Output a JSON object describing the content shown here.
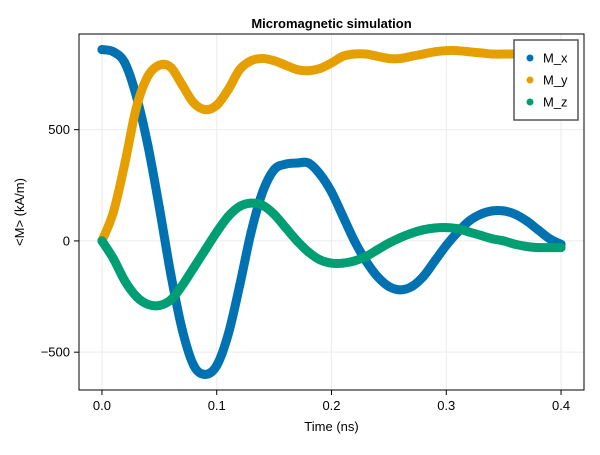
{
  "chart_data": {
    "type": "scatter",
    "title": "Micromagnetic simulation",
    "xlabel": "Time (ns)",
    "ylabel": "<M> (kA/m)",
    "xlim": [
      -0.02,
      0.42
    ],
    "ylim": [
      -670,
      930
    ],
    "xticks": [
      0.0,
      0.1,
      0.2,
      0.3,
      0.4
    ],
    "xtick_labels": [
      "0.0",
      "0.1",
      "0.2",
      "0.3",
      "0.4"
    ],
    "yticks": [
      -500,
      0,
      500
    ],
    "ytick_labels": [
      "−500",
      "0",
      "500"
    ],
    "grid": true,
    "legend_position": "top-right",
    "series": [
      {
        "name": "M_x",
        "color": "#0072b2",
        "x": [
          0.0,
          0.01,
          0.02,
          0.03,
          0.04,
          0.05,
          0.06,
          0.07,
          0.08,
          0.09,
          0.1,
          0.11,
          0.12,
          0.13,
          0.14,
          0.15,
          0.16,
          0.17,
          0.18,
          0.19,
          0.2,
          0.21,
          0.22,
          0.23,
          0.24,
          0.25,
          0.26,
          0.27,
          0.28,
          0.29,
          0.3,
          0.31,
          0.32,
          0.33,
          0.34,
          0.35,
          0.36,
          0.37,
          0.38,
          0.39,
          0.4
        ],
        "y": [
          860,
          850,
          800,
          650,
          430,
          150,
          -150,
          -400,
          -560,
          -600,
          -560,
          -420,
          -200,
          40,
          220,
          320,
          345,
          350,
          350,
          300,
          220,
          110,
          0,
          -90,
          -160,
          -205,
          -220,
          -205,
          -160,
          -90,
          -20,
          40,
          90,
          120,
          135,
          135,
          120,
          90,
          50,
          10,
          -15
        ]
      },
      {
        "name": "M_y",
        "color": "#e69f00",
        "x": [
          0.0,
          0.01,
          0.02,
          0.03,
          0.04,
          0.05,
          0.06,
          0.07,
          0.08,
          0.09,
          0.1,
          0.11,
          0.12,
          0.13,
          0.14,
          0.15,
          0.16,
          0.17,
          0.18,
          0.19,
          0.2,
          0.21,
          0.22,
          0.23,
          0.24,
          0.25,
          0.26,
          0.27,
          0.28,
          0.29,
          0.3,
          0.31,
          0.32,
          0.33,
          0.34,
          0.35,
          0.36,
          0.37,
          0.38,
          0.39,
          0.4
        ],
        "y": [
          0,
          130,
          350,
          600,
          740,
          790,
          780,
          700,
          620,
          590,
          610,
          680,
          770,
          810,
          820,
          810,
          790,
          770,
          765,
          775,
          800,
          830,
          840,
          840,
          830,
          820,
          820,
          830,
          840,
          850,
          855,
          855,
          850,
          845,
          840,
          840,
          840,
          840,
          840,
          840,
          840
        ]
      },
      {
        "name": "M_z",
        "color": "#009e73",
        "x": [
          0.0,
          0.01,
          0.02,
          0.03,
          0.04,
          0.05,
          0.06,
          0.07,
          0.08,
          0.09,
          0.1,
          0.11,
          0.12,
          0.13,
          0.14,
          0.15,
          0.16,
          0.17,
          0.18,
          0.19,
          0.2,
          0.21,
          0.22,
          0.23,
          0.24,
          0.25,
          0.26,
          0.27,
          0.28,
          0.29,
          0.3,
          0.31,
          0.32,
          0.33,
          0.34,
          0.35,
          0.36,
          0.37,
          0.38,
          0.39,
          0.4
        ],
        "y": [
          0,
          -80,
          -180,
          -250,
          -285,
          -290,
          -265,
          -200,
          -120,
          -40,
          40,
          110,
          155,
          170,
          160,
          120,
          60,
          0,
          -50,
          -85,
          -100,
          -100,
          -90,
          -70,
          -40,
          -10,
          15,
          35,
          50,
          58,
          60,
          55,
          40,
          25,
          10,
          0,
          -15,
          -25,
          -30,
          -30,
          -30
        ]
      }
    ]
  }
}
